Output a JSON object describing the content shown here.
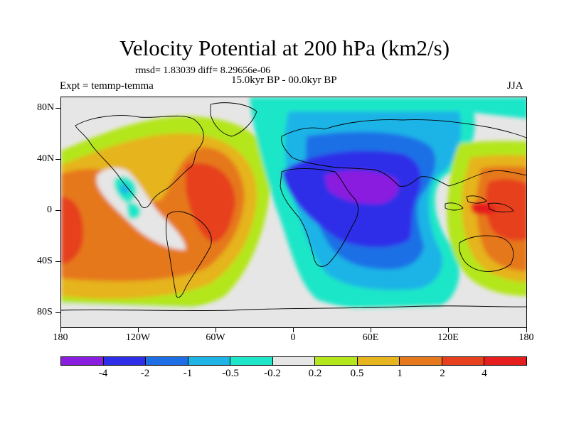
{
  "title": "Velocity Potential at 200 hPa (km2/s)",
  "stats": "rmsd= 1.83039 diff= 8.29656e-06",
  "period": "15.0kyr BP - 00.0kyr BP",
  "experiment": "Expt = temmp-temma",
  "season": "JJA",
  "axes": {
    "y_labels": [
      "80N",
      "40N",
      "0",
      "40S",
      "80S"
    ],
    "x_labels": [
      "180",
      "120W",
      "60W",
      "0",
      "60E",
      "120E",
      "180"
    ]
  },
  "colorbar": {
    "labels": [
      "-4",
      "-2",
      "-1",
      "-0.5",
      "-0.2",
      "0.2",
      "0.5",
      "1",
      "2",
      "4"
    ],
    "colors": [
      "#8a1ee0",
      "#2e2ee8",
      "#1e6fe6",
      "#1eb4e6",
      "#1ee6c8",
      "#e6e6e6",
      "#b4e61e",
      "#e6b41e",
      "#e6781e",
      "#e6401e",
      "#e61e1e"
    ]
  }
}
